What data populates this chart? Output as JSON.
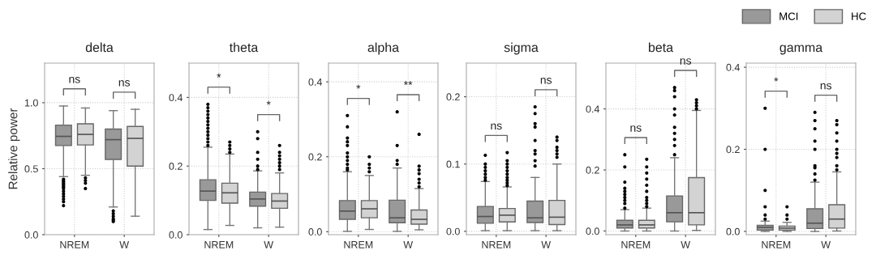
{
  "chart_data": [
    {
      "type": "box",
      "title": "delta",
      "ylabel": "Relative power",
      "categories": [
        "NREM",
        "W"
      ],
      "ylim": [
        0,
        1.3
      ],
      "yticks": [
        {
          "value": 0,
          "label": "0.0"
        },
        {
          "value": 0.5,
          "label": "0.5"
        },
        {
          "value": 1.0,
          "label": "1.0"
        }
      ],
      "grid": true,
      "legend": "top right",
      "series": [
        {
          "name": "MCI",
          "color": "#999999",
          "boxes": [
            {
              "low": 0.44,
              "q1": 0.675,
              "median": 0.745,
              "q3": 0.83,
              "high": 0.975,
              "outliers": [
                0.42,
                0.41,
                0.4,
                0.39,
                0.38,
                0.37,
                0.36,
                0.35,
                0.33,
                0.31,
                0.29,
                0.27,
                0.25,
                0.22
              ]
            },
            {
              "low": 0.21,
              "q1": 0.57,
              "median": 0.72,
              "q3": 0.8,
              "high": 0.94,
              "outliers": [
                0.18,
                0.16,
                0.14,
                0.12,
                0.11,
                0.1
              ]
            }
          ]
        },
        {
          "name": "HC",
          "color": "#d3d3d3",
          "boxes": [
            {
              "low": 0.45,
              "q1": 0.68,
              "median": 0.76,
              "q3": 0.84,
              "high": 0.96,
              "outliers": [
                0.43,
                0.41,
                0.39,
                0.35
              ]
            },
            {
              "low": 0.14,
              "q1": 0.52,
              "median": 0.73,
              "q3": 0.82,
              "high": 0.95
            }
          ]
        }
      ],
      "annotations": [
        "ns",
        "ns"
      ]
    },
    {
      "type": "box",
      "title": "theta",
      "categories": [
        "NREM",
        "W"
      ],
      "ylim": [
        0,
        0.5
      ],
      "yticks": [
        {
          "value": 0,
          "label": "0.0"
        },
        {
          "value": 0.2,
          "label": "0.2"
        },
        {
          "value": 0.4,
          "label": "0.4"
        }
      ],
      "grid": true,
      "series": [
        {
          "color": "#999999",
          "boxes": [
            {
              "low": 0.015,
              "q1": 0.1,
              "median": 0.127,
              "q3": 0.16,
              "high": 0.255,
              "outliers": [
                0.26,
                0.27,
                0.28,
                0.29,
                0.3,
                0.31,
                0.32,
                0.33,
                0.34,
                0.35,
                0.36,
                0.37,
                0.38
              ]
            },
            {
              "low": 0.02,
              "q1": 0.083,
              "median": 0.104,
              "q3": 0.124,
              "high": 0.186,
              "outliers": [
                0.19,
                0.2,
                0.22,
                0.24,
                0.28,
                0.3
              ]
            }
          ]
        },
        {
          "color": "#d3d3d3",
          "boxes": [
            {
              "low": 0.027,
              "q1": 0.092,
              "median": 0.122,
              "q3": 0.15,
              "high": 0.235,
              "outliers": [
                0.24,
                0.25,
                0.26,
                0.27
              ]
            },
            {
              "low": 0.022,
              "q1": 0.077,
              "median": 0.098,
              "q3": 0.12,
              "high": 0.18,
              "outliers": [
                0.19,
                0.2,
                0.21,
                0.22,
                0.23,
                0.24,
                0.26
              ]
            }
          ]
        }
      ],
      "annotations": [
        "*",
        "*"
      ]
    },
    {
      "type": "box",
      "title": "alpha",
      "categories": [
        "NREM",
        "W"
      ],
      "ylim": [
        -0.008,
        0.45
      ],
      "yticks": [
        {
          "value": 0,
          "label": "0.0"
        },
        {
          "value": 0.2,
          "label": "0.2"
        },
        {
          "value": 0.4,
          "label": "0.4"
        }
      ],
      "grid": true,
      "series": [
        {
          "color": "#999999",
          "boxes": [
            {
              "low": 0.001,
              "q1": 0.033,
              "median": 0.055,
              "q3": 0.083,
              "high": 0.16,
              "outliers": [
                0.165,
                0.17,
                0.18,
                0.19,
                0.2,
                0.21,
                0.23,
                0.24,
                0.25,
                0.28,
                0.31
              ]
            },
            {
              "low": 0.001,
              "q1": 0.024,
              "median": 0.037,
              "q3": 0.084,
              "high": 0.17,
              "outliers": [
                0.18,
                0.19,
                0.23,
                0.32
              ]
            }
          ]
        },
        {
          "color": "#d3d3d3",
          "boxes": [
            {
              "low": 0.006,
              "q1": 0.037,
              "median": 0.061,
              "q3": 0.083,
              "high": 0.15,
              "outliers": [
                0.16,
                0.17,
                0.18,
                0.2
              ]
            },
            {
              "low": 0.005,
              "q1": 0.02,
              "median": 0.033,
              "q3": 0.058,
              "high": 0.115,
              "outliers": [
                0.12,
                0.13,
                0.14,
                0.155,
                0.165,
                0.175,
                0.26
              ]
            }
          ]
        }
      ],
      "annotations": [
        "*",
        "**"
      ]
    },
    {
      "type": "box",
      "title": "sigma",
      "categories": [
        "NREM",
        "W"
      ],
      "ylim": [
        -0.005,
        0.25
      ],
      "yticks": [
        {
          "value": 0,
          "label": "0.0"
        },
        {
          "value": 0.1,
          "label": "0.1"
        },
        {
          "value": 0.2,
          "label": "0.2"
        }
      ],
      "grid": true,
      "series": [
        {
          "color": "#999999",
          "boxes": [
            {
              "low": 0.001,
              "q1": 0.012,
              "median": 0.022,
              "q3": 0.037,
              "high": 0.074,
              "outliers": [
                0.076,
                0.08,
                0.085,
                0.09,
                0.095,
                0.1,
                0.113
              ]
            },
            {
              "low": 0.001,
              "q1": 0.013,
              "median": 0.02,
              "q3": 0.045,
              "high": 0.08,
              "outliers": [
                0.097,
                0.105,
                0.115,
                0.12,
                0.135,
                0.155,
                0.16,
                0.175,
                0.185
              ]
            }
          ]
        },
        {
          "color": "#d3d3d3",
          "boxes": [
            {
              "low": 0.001,
              "q1": 0.014,
              "median": 0.024,
              "q3": 0.034,
              "high": 0.066,
              "outliers": [
                0.068,
                0.072,
                0.076,
                0.08,
                0.085,
                0.09,
                0.095,
                0.1,
                0.105,
                0.117
              ]
            },
            {
              "low": 0.001,
              "q1": 0.01,
              "median": 0.021,
              "q3": 0.046,
              "high": 0.1,
              "outliers": [
                0.11,
                0.115,
                0.12,
                0.125,
                0.135,
                0.14
              ]
            }
          ]
        }
      ],
      "annotations": [
        "ns",
        "ns"
      ]
    },
    {
      "type": "box",
      "title": "beta",
      "categories": [
        "NREM",
        "W"
      ],
      "ylim": [
        -0.012,
        0.55
      ],
      "yticks": [
        {
          "value": 0,
          "label": "0.0"
        },
        {
          "value": 0.2,
          "label": "0.2"
        },
        {
          "value": 0.4,
          "label": "0.4"
        }
      ],
      "grid": true,
      "series": [
        {
          "color": "#999999",
          "boxes": [
            {
              "low": 0.0,
              "q1": 0.01,
              "median": 0.02,
              "q3": 0.035,
              "high": 0.07,
              "outliers": [
                0.075,
                0.09,
                0.1,
                0.11,
                0.12,
                0.13,
                0.14,
                0.16,
                0.21,
                0.25
              ]
            },
            {
              "low": 0.0,
              "q1": 0.03,
              "median": 0.06,
              "q3": 0.115,
              "high": 0.24,
              "outliers": [
                0.25,
                0.28,
                0.3,
                0.32,
                0.34,
                0.38,
                0.4,
                0.44,
                0.46,
                0.47
              ]
            }
          ]
        },
        {
          "color": "#d3d3d3",
          "boxes": [
            {
              "low": 0.0,
              "q1": 0.01,
              "median": 0.02,
              "q3": 0.035,
              "high": 0.075,
              "outliers": [
                0.08,
                0.09,
                0.1,
                0.11,
                0.13,
                0.15,
                0.17,
                0.19,
                0.21,
                0.235
              ]
            },
            {
              "low": 0.002,
              "q1": 0.02,
              "median": 0.06,
              "q3": 0.175,
              "high": 0.395,
              "outliers": [
                0.4,
                0.41,
                0.42,
                0.43
              ]
            }
          ]
        }
      ],
      "annotations": [
        "ns",
        "ns"
      ]
    },
    {
      "type": "box",
      "title": "gamma",
      "categories": [
        "NREM",
        "W"
      ],
      "ylim": [
        -0.008,
        0.41
      ],
      "yticks": [
        {
          "value": 0,
          "label": "0.0"
        },
        {
          "value": 0.2,
          "label": "0.2"
        },
        {
          "value": 0.4,
          "label": "0.4"
        }
      ],
      "grid": true,
      "series": [
        {
          "color": "#999999",
          "boxes": [
            {
              "low": 0.0,
              "q1": 0.003,
              "median": 0.01,
              "q3": 0.015,
              "high": 0.025,
              "outliers": [
                0.03,
                0.04,
                0.06,
                0.1,
                0.2,
                0.3
              ]
            },
            {
              "low": 0.0,
              "q1": 0.007,
              "median": 0.02,
              "q3": 0.055,
              "high": 0.12,
              "outliers": [
                0.125,
                0.14,
                0.155,
                0.16,
                0.2,
                0.22,
                0.25,
                0.27,
                0.29
              ]
            }
          ]
        },
        {
          "color": "#d3d3d3",
          "boxes": [
            {
              "low": 0.0,
              "q1": 0.003,
              "median": 0.008,
              "q3": 0.013,
              "high": 0.022,
              "outliers": [
                0.03,
                0.04,
                0.06
              ]
            },
            {
              "low": 0.001,
              "q1": 0.008,
              "median": 0.03,
              "q3": 0.065,
              "high": 0.145,
              "outliers": [
                0.15,
                0.16,
                0.18,
                0.19,
                0.2,
                0.22,
                0.24,
                0.26,
                0.27
              ]
            }
          ]
        }
      ],
      "annotations": [
        "*",
        "ns"
      ]
    }
  ]
}
